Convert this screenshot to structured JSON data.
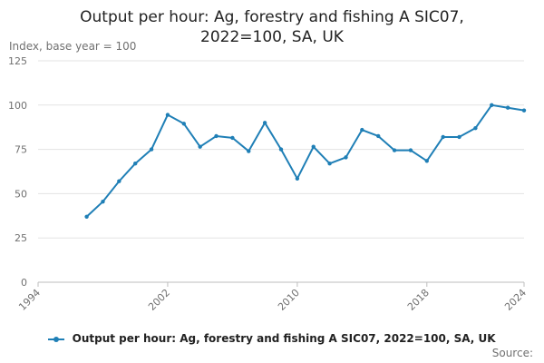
{
  "chart_data": {
    "type": "line",
    "title_line1": "Output per hour: Ag, forestry and fishing A SIC07,",
    "title_line2": "2022=100, SA, UK",
    "ylabel": "Index, base year = 100",
    "ylim": [
      0,
      125
    ],
    "yticks": [
      0,
      25,
      50,
      75,
      100,
      125
    ],
    "xlim": [
      1994,
      2024
    ],
    "xticks": [
      1994,
      2002,
      2010,
      2018,
      2024
    ],
    "grid": true,
    "legend_position": "bottom",
    "source": "Source:",
    "series": [
      {
        "name": "Output per hour: Ag, forestry and fishing A SIC07, 2022=100, SA, UK",
        "color": "#1f7fb6",
        "x": [
          1997,
          1998,
          1999,
          2000,
          2001,
          2002,
          2003,
          2004,
          2005,
          2006,
          2007,
          2008,
          2009,
          2010,
          2011,
          2012,
          2013,
          2014,
          2015,
          2016,
          2017,
          2018,
          2019,
          2020,
          2021,
          2022,
          2023,
          2024
        ],
        "values": [
          37,
          45.5,
          57,
          67,
          75,
          94.5,
          89.5,
          76.5,
          82.5,
          81.5,
          74,
          90,
          75,
          58.5,
          76.5,
          67,
          70.5,
          86,
          82.5,
          74.5,
          74.5,
          68.5,
          82,
          82,
          87,
          100,
          98.5,
          97
        ]
      }
    ]
  }
}
